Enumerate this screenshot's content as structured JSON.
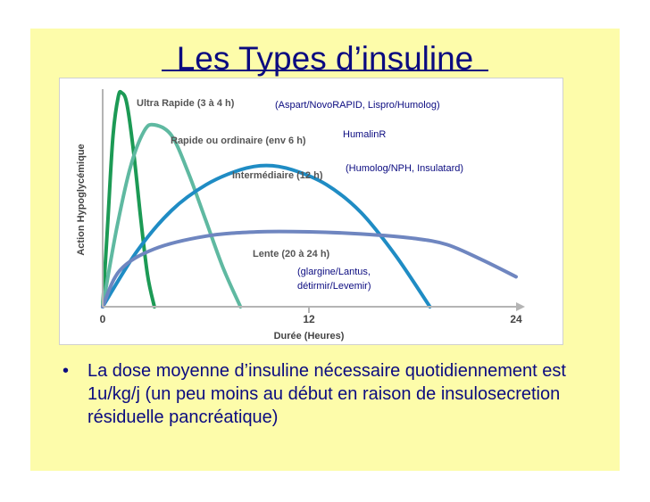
{
  "slide": {
    "title": "Les Types d’insuline",
    "bullet_symbol": "•",
    "bullet_text": "La dose moyenne d’insuline nécessaire quotidiennement est 1u/kg/j (un peu moins au début en raison de insulosecretion résiduelle pancréatique)",
    "colors": {
      "background": "#fdfcaa",
      "text": "#0b0b80"
    }
  },
  "chart_data": {
    "type": "line",
    "title": "",
    "xlabel": "Durée (Heures)",
    "ylabel": "Action Hypoglycémique",
    "xlim": [
      0,
      24
    ],
    "ylim": [
      0,
      100
    ],
    "x_ticks": [
      0,
      12,
      24
    ],
    "grid": false,
    "series": [
      {
        "name": "Ultra Rapide (3 à 4 h)",
        "color": "#1c9a55",
        "x": [
          0,
          0.3,
          0.6,
          0.9,
          1.1,
          1.4,
          1.8,
          2.2,
          2.6,
          3.0
        ],
        "y": [
          0,
          40,
          80,
          98,
          100,
          95,
          72,
          42,
          15,
          0
        ]
      },
      {
        "name": "Rapide ou ordinaire (env 6 h)",
        "color": "#5fb9a1",
        "x": [
          0,
          0.8,
          1.6,
          2.4,
          3.0,
          4.0,
          5.0,
          6.0,
          7.0,
          8.0
        ],
        "y": [
          0,
          36,
          65,
          82,
          85,
          80,
          62,
          40,
          18,
          0
        ]
      },
      {
        "name": "Intermédiaire (12 h)",
        "color": "#1f8cc4",
        "x": [
          0,
          2,
          4,
          6,
          8,
          9.5,
          11,
          13,
          15,
          17,
          19
        ],
        "y": [
          0,
          26,
          45,
          57,
          64,
          66,
          64,
          57,
          44,
          24,
          0
        ]
      },
      {
        "name": "Lente (20 à 24 h)",
        "color": "#6f86c0",
        "x": [
          0,
          1,
          3,
          6,
          9,
          12,
          15,
          18,
          20,
          22,
          24
        ],
        "y": [
          0,
          17,
          27,
          33,
          35,
          35,
          34,
          32,
          29,
          22,
          14
        ]
      }
    ],
    "annotations": [
      "(Aspart/NovoRAPID, Lispro/Humolog)",
      "HumalinR",
      "(Humolog/NPH, Insulatard)",
      "(glargine/Lantus,",
      "détirmir/Levemir)"
    ]
  }
}
